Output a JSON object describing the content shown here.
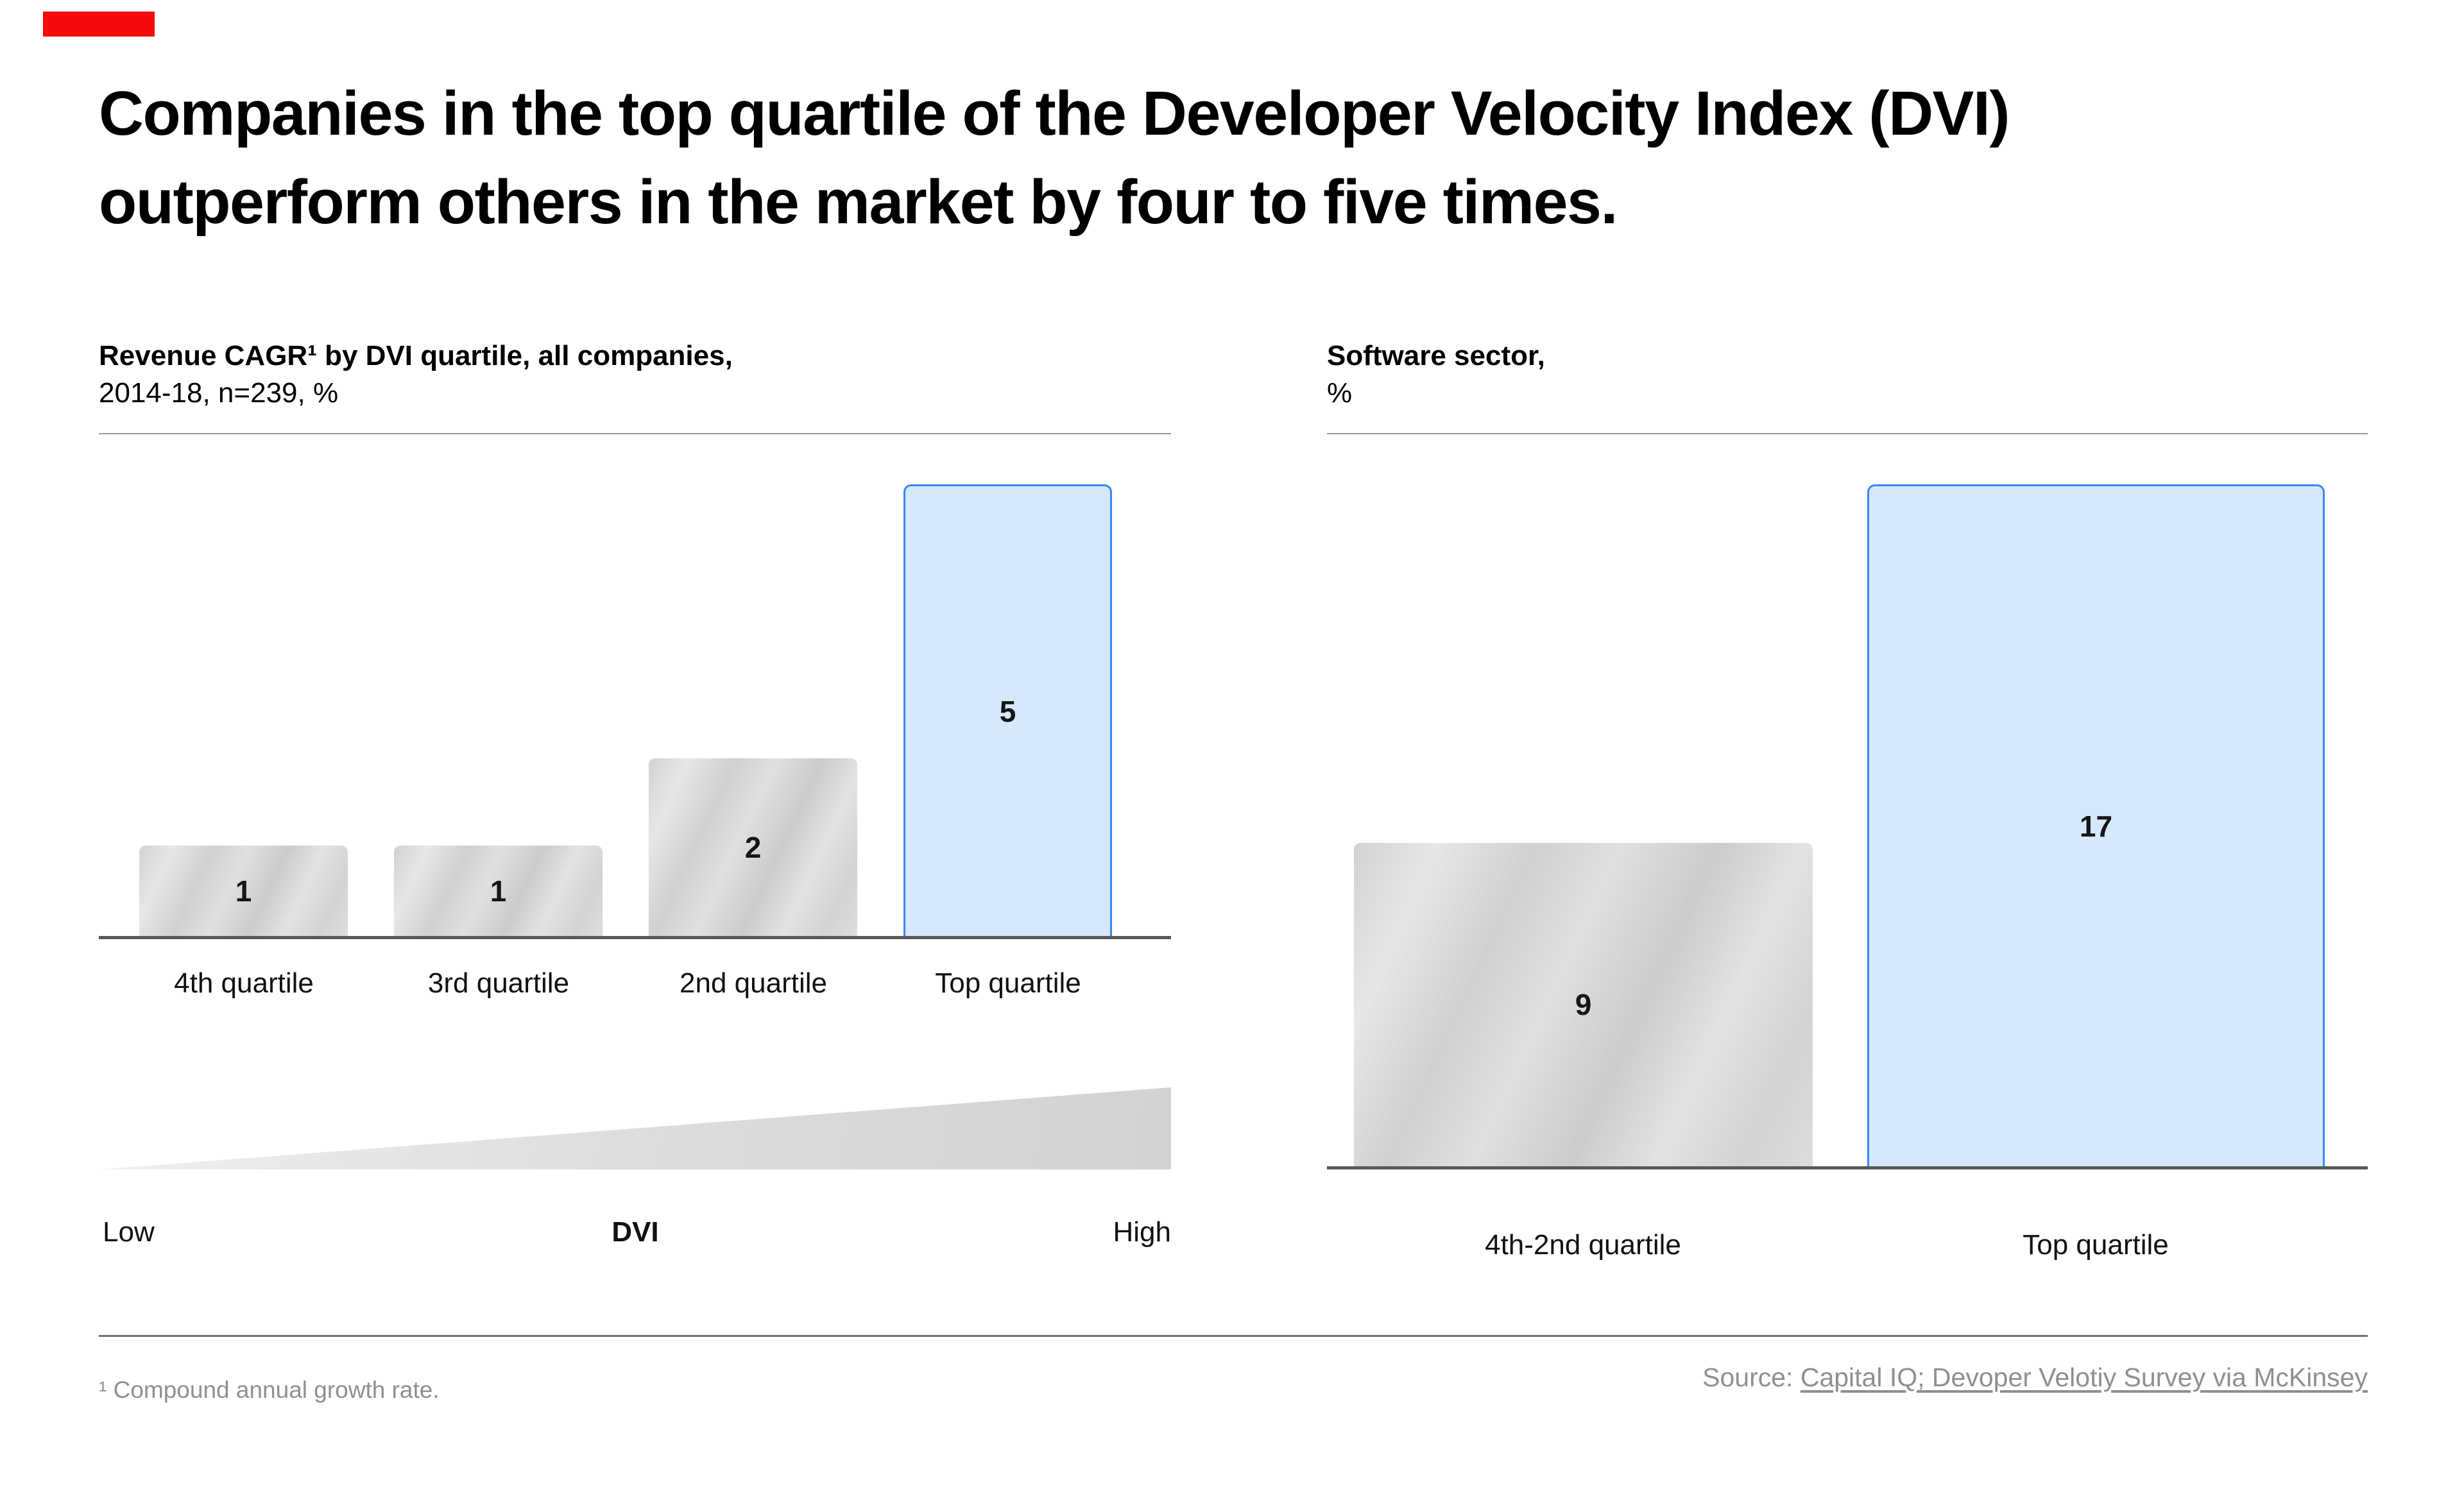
{
  "accent": {
    "red_bar_color": "#f40b0b",
    "highlight_fill": "#d5e8fc",
    "highlight_border": "#3c85f6"
  },
  "title": {
    "line1": "Companies in the top quartile of the Developer Velocity Index (DVI)",
    "line2": "outperform others in the market by four to five times."
  },
  "charts": {
    "left": {
      "header_bold": "Revenue CAGR¹ by DVI quartile, all companies,",
      "header_regular": "2014-18, n=239, %",
      "bars": [
        {
          "label": "4th quartile",
          "value": "1"
        },
        {
          "label": "3rd quartile",
          "value": "1"
        },
        {
          "label": "2nd quartile",
          "value": "2"
        },
        {
          "label": "Top quartile",
          "value": "5"
        }
      ],
      "axis": {
        "low": "Low",
        "mid": "DVI",
        "high": "High"
      }
    },
    "right": {
      "header_bold": "Software sector,",
      "header_regular": "%",
      "bars": [
        {
          "label": "4th-2nd quartile",
          "value": "9"
        },
        {
          "label": "Top quartile",
          "value": "17"
        }
      ]
    }
  },
  "footer": {
    "footnote": "¹ Compound annual growth rate.",
    "source_prefix": "Source: ",
    "source_link": "Capital IQ; Devoper Velotiy Survey via McKinsey"
  },
  "chart_data": [
    {
      "type": "bar",
      "title": "Revenue CAGR¹ by DVI quartile, all companies, 2014-18, n=239, %",
      "categories": [
        "4th quartile",
        "3rd quartile",
        "2nd quartile",
        "Top quartile"
      ],
      "values": [
        1,
        1,
        2,
        5
      ],
      "unit": "%",
      "highlight_index": 3,
      "xlabel": "DVI (Low to High)",
      "legend": "none",
      "grid": false
    },
    {
      "type": "bar",
      "title": "Software sector, %",
      "categories": [
        "4th-2nd quartile",
        "Top quartile"
      ],
      "values": [
        9,
        17
      ],
      "unit": "%",
      "highlight_index": 1,
      "legend": "none",
      "grid": false
    }
  ]
}
